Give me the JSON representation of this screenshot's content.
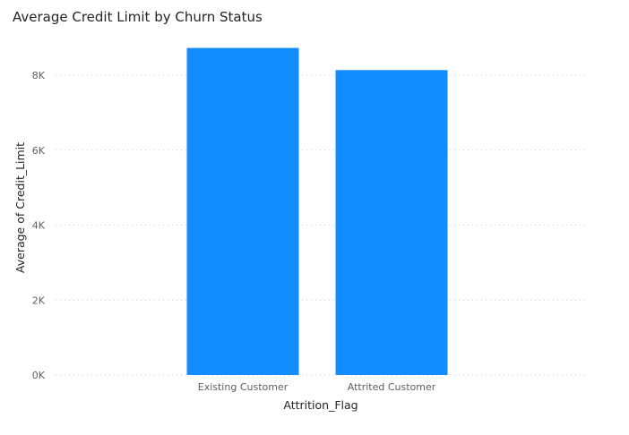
{
  "chart_data": {
    "type": "bar",
    "title": "Average Credit Limit by Churn Status",
    "xlabel": "Attrition_Flag",
    "ylabel": "Average of Credit_Limit",
    "categories": [
      "Existing Customer",
      "Attrited Customer"
    ],
    "values": [
      8727,
      8136
    ],
    "ylim": [
      0,
      8000
    ],
    "yticks": [
      {
        "value": 0,
        "label": "0K"
      },
      {
        "value": 2000,
        "label": "2K"
      },
      {
        "value": 4000,
        "label": "4K"
      },
      {
        "value": 6000,
        "label": "6K"
      },
      {
        "value": 8000,
        "label": "8K"
      }
    ],
    "grid": true,
    "bar_color": "#118DFF"
  }
}
